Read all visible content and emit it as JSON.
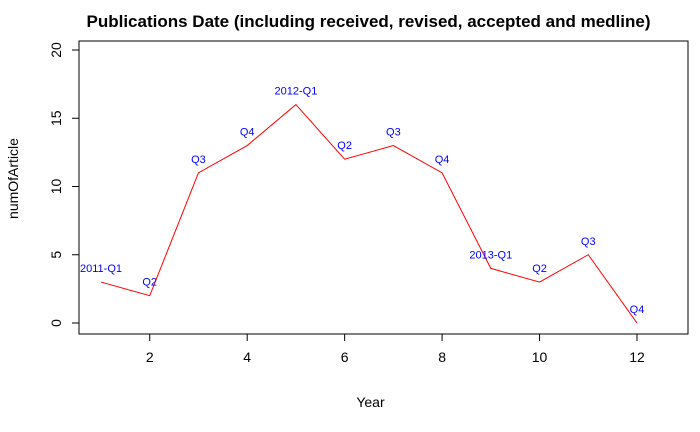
{
  "chart_data": {
    "type": "line",
    "title": "Publications Date (including received, revised, accepted and medline)",
    "xlabel": "Year",
    "ylabel": "numOfArticle",
    "x": [
      1,
      2,
      3,
      4,
      5,
      6,
      7,
      8,
      9,
      10,
      11,
      12
    ],
    "series": [
      {
        "values": [
          3,
          2,
          11,
          13,
          16,
          12,
          13,
          11,
          4,
          3,
          5,
          0
        ],
        "color": "#ff0000"
      }
    ],
    "point_labels": [
      "2011-Q1",
      "Q2",
      "Q3",
      "Q4",
      "2012-Q1",
      "Q2",
      "Q3",
      "Q4",
      "2013-Q1",
      "Q2",
      "Q3",
      "Q4"
    ],
    "point_label_color": "#0000ff",
    "xlim": [
      1,
      12
    ],
    "ylim": [
      0,
      20
    ],
    "x_ticks": [
      2,
      4,
      6,
      8,
      10,
      12
    ],
    "y_ticks": [
      0,
      5,
      10,
      15,
      20
    ],
    "grid": false,
    "legend": "none"
  }
}
